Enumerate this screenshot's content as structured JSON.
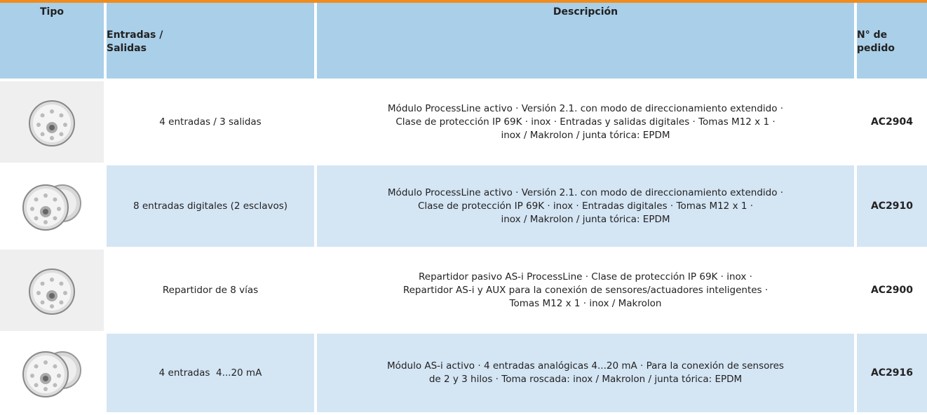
{
  "table": {
    "header": {
      "tipo": "Tipo",
      "io": [
        "Entradas /",
        "Salidas"
      ],
      "desc": "Descripción",
      "order": [
        "N° de",
        "pedido"
      ]
    },
    "rows": [
      {
        "io": "4 entradas / 3 salidas",
        "desc": [
          "Módulo ProcessLine activo · Versión 2.1. con modo de direccionamiento extendido ·",
          "Clase de protección IP 69K · inox · Entradas y salidas digitales · Tomas M12 x 1 ·",
          "inox / Makrolon / junta tórica: EPDM"
        ],
        "order": "AC2904"
      },
      {
        "io": "8 entradas digitales (2 esclavos)",
        "desc": [
          "Módulo ProcessLine activo · Versión 2.1. con modo de direccionamiento extendido ·",
          "Clase de protección IP 69K · inox · Entradas digitales · Tomas M12 x 1 ·",
          "inox / Makrolon / junta tórica: EPDM"
        ],
        "order": "AC2910"
      },
      {
        "io": "Repartidor de 8 vías",
        "desc": [
          "Repartidor pasivo AS-i ProcessLine · Clase de protección IP 69K · inox ·",
          "Repartidor AS-i y AUX para la conexión de sensores/actuadores inteligentes ·",
          "Tomas M12 x 1 · inox / Makrolon"
        ],
        "order": "AC2900"
      },
      {
        "io": "4 entradas  4...20 mA",
        "desc": [
          "Módulo AS-i activo · 4 entradas analógicas 4...20 mA · Para la conexión de sensores",
          "de 2 y 3 hilos · Toma roscada: inox / Makrolon / junta tórica: EPDM"
        ],
        "order": "AC2916"
      }
    ]
  }
}
